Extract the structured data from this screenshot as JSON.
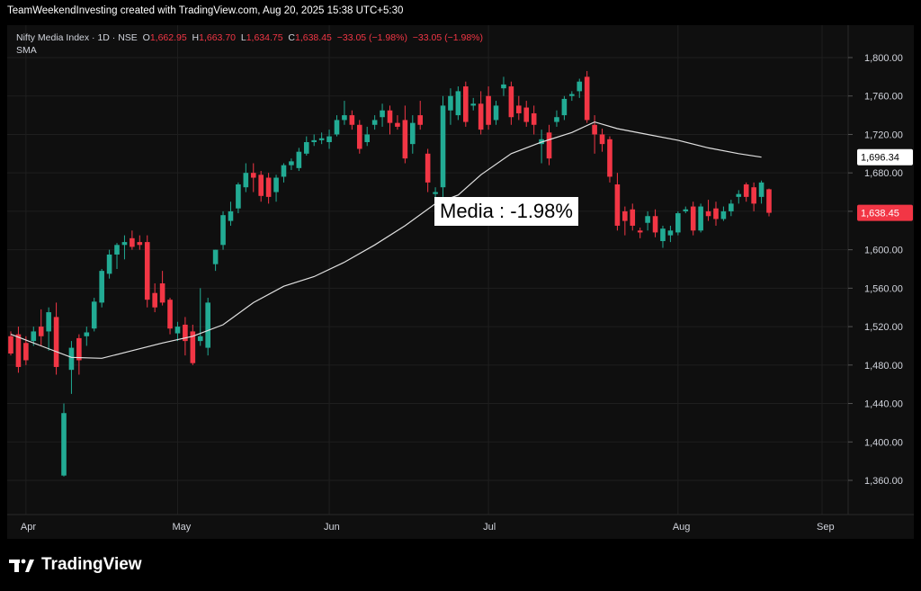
{
  "header": {
    "attribution": "TeamWeekendInvesting created with TradingView.com, Aug 20, 2025 15:38 UTC+5:30"
  },
  "legend": {
    "symbol": "Nifty Media Index · 1D · NSE",
    "o_label": "O",
    "o_value": "1,662.95",
    "h_label": "H",
    "h_value": "1,663.70",
    "l_label": "L",
    "l_value": "1,634.75",
    "c_label": "C",
    "c_value": "1,638.45",
    "change": "−33.05 (−1.98%)",
    "change2": "−33.05 (−1.98%)",
    "indicator": "SMA"
  },
  "callout": "Media : -1.98%",
  "footer": {
    "logo_text": "TradingView"
  },
  "colors": {
    "up": "#22ab94",
    "down": "#f23645",
    "sma": "#e0e0e0",
    "background": "#0f0f0f",
    "grid": "#1f1f1f"
  },
  "chart_data": {
    "type": "candlestick",
    "ylim": [
      1330,
      1830
    ],
    "y_ticks": [
      1360,
      1400,
      1440,
      1480,
      1520,
      1560,
      1600,
      1640,
      1680,
      1720,
      1760,
      1800
    ],
    "y_tick_labels": [
      "1,360.00",
      "1,400.00",
      "1,440.00",
      "1,480.00",
      "1,520.00",
      "1,560.00",
      "1,600.00",
      "1,640.00",
      "1,680.00",
      "1,720.00",
      "1,760.00",
      "1,800.00"
    ],
    "x_tick_labels": [
      "Apr",
      "May",
      "Jun",
      "Jul",
      "Aug",
      "Sep"
    ],
    "x_tick_index": [
      2,
      22,
      42,
      63,
      88,
      107
    ],
    "price_labels": [
      {
        "value": 1696.34,
        "text": "1,696.34",
        "style": "sma"
      },
      {
        "value": 1638.45,
        "text": "1,638.45",
        "style": "last"
      }
    ],
    "candles": [
      {
        "o": 1510,
        "h": 1515,
        "l": 1490,
        "c": 1492
      },
      {
        "o": 1512,
        "h": 1520,
        "l": 1472,
        "c": 1478
      },
      {
        "o": 1503,
        "h": 1510,
        "l": 1480,
        "c": 1485
      },
      {
        "o": 1505,
        "h": 1520,
        "l": 1500,
        "c": 1515
      },
      {
        "o": 1520,
        "h": 1538,
        "l": 1500,
        "c": 1510
      },
      {
        "o": 1515,
        "h": 1540,
        "l": 1495,
        "c": 1535
      },
      {
        "o": 1530,
        "h": 1545,
        "l": 1470,
        "c": 1478
      },
      {
        "o": 1365,
        "h": 1440,
        "l": 1364,
        "c": 1430
      },
      {
        "o": 1475,
        "h": 1505,
        "l": 1450,
        "c": 1498
      },
      {
        "o": 1508,
        "h": 1512,
        "l": 1470,
        "c": 1485
      },
      {
        "o": 1510,
        "h": 1520,
        "l": 1500,
        "c": 1514
      },
      {
        "o": 1518,
        "h": 1550,
        "l": 1515,
        "c": 1546
      },
      {
        "o": 1545,
        "h": 1580,
        "l": 1540,
        "c": 1578
      },
      {
        "o": 1575,
        "h": 1600,
        "l": 1570,
        "c": 1595
      },
      {
        "o": 1595,
        "h": 1607,
        "l": 1580,
        "c": 1605
      },
      {
        "o": 1605,
        "h": 1615,
        "l": 1590,
        "c": 1608
      },
      {
        "o": 1612,
        "h": 1620,
        "l": 1600,
        "c": 1603
      },
      {
        "o": 1608,
        "h": 1615,
        "l": 1600,
        "c": 1605
      },
      {
        "o": 1608,
        "h": 1615,
        "l": 1540,
        "c": 1548
      },
      {
        "o": 1555,
        "h": 1565,
        "l": 1535,
        "c": 1540
      },
      {
        "o": 1565,
        "h": 1578,
        "l": 1542,
        "c": 1545
      },
      {
        "o": 1548,
        "h": 1550,
        "l": 1512,
        "c": 1518
      },
      {
        "o": 1513,
        "h": 1525,
        "l": 1505,
        "c": 1520
      },
      {
        "o": 1522,
        "h": 1530,
        "l": 1490,
        "c": 1505
      },
      {
        "o": 1515,
        "h": 1522,
        "l": 1480,
        "c": 1482
      },
      {
        "o": 1505,
        "h": 1560,
        "l": 1500,
        "c": 1510
      },
      {
        "o": 1498,
        "h": 1550,
        "l": 1490,
        "c": 1545
      },
      {
        "o": 1585,
        "h": 1600,
        "l": 1578,
        "c": 1600
      },
      {
        "o": 1605,
        "h": 1640,
        "l": 1600,
        "c": 1636
      },
      {
        "o": 1630,
        "h": 1650,
        "l": 1625,
        "c": 1640
      },
      {
        "o": 1643,
        "h": 1670,
        "l": 1638,
        "c": 1668
      },
      {
        "o": 1665,
        "h": 1690,
        "l": 1660,
        "c": 1680
      },
      {
        "o": 1680,
        "h": 1690,
        "l": 1660,
        "c": 1675
      },
      {
        "o": 1678,
        "h": 1682,
        "l": 1650,
        "c": 1656
      },
      {
        "o": 1675,
        "h": 1680,
        "l": 1648,
        "c": 1655
      },
      {
        "o": 1660,
        "h": 1678,
        "l": 1650,
        "c": 1675
      },
      {
        "o": 1676,
        "h": 1690,
        "l": 1670,
        "c": 1688
      },
      {
        "o": 1688,
        "h": 1695,
        "l": 1683,
        "c": 1692
      },
      {
        "o": 1685,
        "h": 1706,
        "l": 1682,
        "c": 1702
      },
      {
        "o": 1700,
        "h": 1718,
        "l": 1698,
        "c": 1712
      },
      {
        "o": 1712,
        "h": 1720,
        "l": 1708,
        "c": 1714
      },
      {
        "o": 1714,
        "h": 1722,
        "l": 1710,
        "c": 1716
      },
      {
        "o": 1712,
        "h": 1725,
        "l": 1705,
        "c": 1718
      },
      {
        "o": 1720,
        "h": 1740,
        "l": 1718,
        "c": 1735
      },
      {
        "o": 1735,
        "h": 1755,
        "l": 1730,
        "c": 1740
      },
      {
        "o": 1740,
        "h": 1745,
        "l": 1725,
        "c": 1730
      },
      {
        "o": 1730,
        "h": 1735,
        "l": 1700,
        "c": 1705
      },
      {
        "o": 1712,
        "h": 1728,
        "l": 1708,
        "c": 1720
      },
      {
        "o": 1730,
        "h": 1740,
        "l": 1725,
        "c": 1735
      },
      {
        "o": 1738,
        "h": 1752,
        "l": 1728,
        "c": 1745
      },
      {
        "o": 1745,
        "h": 1750,
        "l": 1720,
        "c": 1732
      },
      {
        "o": 1732,
        "h": 1740,
        "l": 1725,
        "c": 1728
      },
      {
        "o": 1735,
        "h": 1750,
        "l": 1690,
        "c": 1695
      },
      {
        "o": 1710,
        "h": 1740,
        "l": 1700,
        "c": 1732
      },
      {
        "o": 1740,
        "h": 1755,
        "l": 1725,
        "c": 1730
      },
      {
        "o": 1700,
        "h": 1705,
        "l": 1660,
        "c": 1670
      },
      {
        "o": 1658,
        "h": 1665,
        "l": 1650,
        "c": 1660
      },
      {
        "o": 1665,
        "h": 1760,
        "l": 1655,
        "c": 1750
      },
      {
        "o": 1745,
        "h": 1768,
        "l": 1730,
        "c": 1760
      },
      {
        "o": 1740,
        "h": 1770,
        "l": 1735,
        "c": 1765
      },
      {
        "o": 1770,
        "h": 1775,
        "l": 1728,
        "c": 1733
      },
      {
        "o": 1750,
        "h": 1758,
        "l": 1745,
        "c": 1752
      },
      {
        "o": 1752,
        "h": 1765,
        "l": 1720,
        "c": 1725
      },
      {
        "o": 1760,
        "h": 1770,
        "l": 1725,
        "c": 1730
      },
      {
        "o": 1735,
        "h": 1755,
        "l": 1730,
        "c": 1750
      },
      {
        "o": 1768,
        "h": 1780,
        "l": 1760,
        "c": 1772
      },
      {
        "o": 1770,
        "h": 1775,
        "l": 1730,
        "c": 1738
      },
      {
        "o": 1750,
        "h": 1760,
        "l": 1735,
        "c": 1742
      },
      {
        "o": 1748,
        "h": 1755,
        "l": 1728,
        "c": 1733
      },
      {
        "o": 1742,
        "h": 1750,
        "l": 1720,
        "c": 1730
      },
      {
        "o": 1710,
        "h": 1725,
        "l": 1690,
        "c": 1715
      },
      {
        "o": 1722,
        "h": 1730,
        "l": 1688,
        "c": 1695
      },
      {
        "o": 1733,
        "h": 1745,
        "l": 1728,
        "c": 1738
      },
      {
        "o": 1740,
        "h": 1760,
        "l": 1735,
        "c": 1757
      },
      {
        "o": 1760,
        "h": 1765,
        "l": 1755,
        "c": 1762
      },
      {
        "o": 1765,
        "h": 1778,
        "l": 1758,
        "c": 1775
      },
      {
        "o": 1780,
        "h": 1786,
        "l": 1732,
        "c": 1735
      },
      {
        "o": 1730,
        "h": 1740,
        "l": 1700,
        "c": 1720
      },
      {
        "o": 1720,
        "h": 1726,
        "l": 1702,
        "c": 1710
      },
      {
        "o": 1715,
        "h": 1718,
        "l": 1670,
        "c": 1676
      },
      {
        "o": 1668,
        "h": 1680,
        "l": 1620,
        "c": 1625
      },
      {
        "o": 1640,
        "h": 1645,
        "l": 1615,
        "c": 1630
      },
      {
        "o": 1642,
        "h": 1648,
        "l": 1620,
        "c": 1625
      },
      {
        "o": 1620,
        "h": 1623,
        "l": 1612,
        "c": 1618
      },
      {
        "o": 1628,
        "h": 1640,
        "l": 1620,
        "c": 1635
      },
      {
        "o": 1635,
        "h": 1642,
        "l": 1613,
        "c": 1618
      },
      {
        "o": 1609,
        "h": 1625,
        "l": 1602,
        "c": 1622
      },
      {
        "o": 1615,
        "h": 1625,
        "l": 1608,
        "c": 1620
      },
      {
        "o": 1618,
        "h": 1640,
        "l": 1615,
        "c": 1638
      },
      {
        "o": 1640,
        "h": 1645,
        "l": 1638,
        "c": 1642
      },
      {
        "o": 1645,
        "h": 1650,
        "l": 1615,
        "c": 1620
      },
      {
        "o": 1620,
        "h": 1648,
        "l": 1618,
        "c": 1645
      },
      {
        "o": 1640,
        "h": 1652,
        "l": 1630,
        "c": 1635
      },
      {
        "o": 1643,
        "h": 1650,
        "l": 1625,
        "c": 1632
      },
      {
        "o": 1632,
        "h": 1645,
        "l": 1630,
        "c": 1640
      },
      {
        "o": 1640,
        "h": 1652,
        "l": 1635,
        "c": 1648
      },
      {
        "o": 1655,
        "h": 1662,
        "l": 1648,
        "c": 1658
      },
      {
        "o": 1668,
        "h": 1670,
        "l": 1650,
        "c": 1655
      },
      {
        "o": 1665,
        "h": 1670,
        "l": 1640,
        "c": 1648
      },
      {
        "o": 1655,
        "h": 1672,
        "l": 1648,
        "c": 1670
      },
      {
        "o": 1662.95,
        "h": 1663.7,
        "l": 1634.75,
        "c": 1638.45
      }
    ],
    "sma": [
      {
        "i": 0,
        "v": 1512
      },
      {
        "i": 4,
        "v": 1500
      },
      {
        "i": 8,
        "v": 1488
      },
      {
        "i": 12,
        "v": 1487
      },
      {
        "i": 16,
        "v": 1495
      },
      {
        "i": 20,
        "v": 1503
      },
      {
        "i": 24,
        "v": 1510
      },
      {
        "i": 28,
        "v": 1522
      },
      {
        "i": 32,
        "v": 1545
      },
      {
        "i": 36,
        "v": 1562
      },
      {
        "i": 40,
        "v": 1572
      },
      {
        "i": 44,
        "v": 1587
      },
      {
        "i": 48,
        "v": 1605
      },
      {
        "i": 52,
        "v": 1625
      },
      {
        "i": 56,
        "v": 1648
      },
      {
        "i": 59,
        "v": 1657
      },
      {
        "i": 62,
        "v": 1678
      },
      {
        "i": 66,
        "v": 1700
      },
      {
        "i": 70,
        "v": 1712
      },
      {
        "i": 74,
        "v": 1722
      },
      {
        "i": 77,
        "v": 1733
      },
      {
        "i": 80,
        "v": 1726
      },
      {
        "i": 84,
        "v": 1720
      },
      {
        "i": 88,
        "v": 1714
      },
      {
        "i": 92,
        "v": 1706
      },
      {
        "i": 96,
        "v": 1700
      },
      {
        "i": 99,
        "v": 1696.34
      }
    ]
  }
}
